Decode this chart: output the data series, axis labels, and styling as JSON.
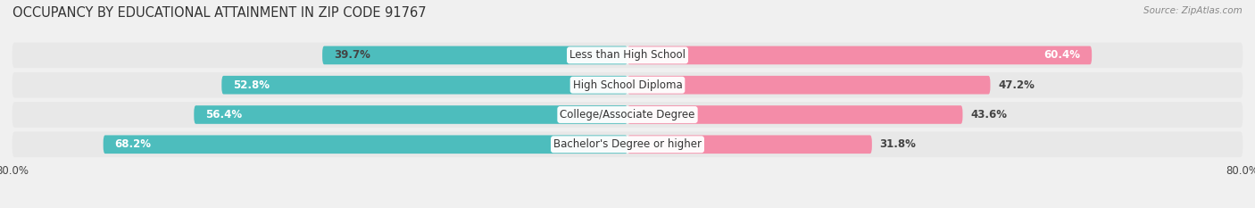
{
  "title": "OCCUPANCY BY EDUCATIONAL ATTAINMENT IN ZIP CODE 91767",
  "source": "Source: ZipAtlas.com",
  "categories": [
    "Less than High School",
    "High School Diploma",
    "College/Associate Degree",
    "Bachelor's Degree or higher"
  ],
  "owner_values": [
    39.7,
    52.8,
    56.4,
    68.2
  ],
  "renter_values": [
    60.4,
    47.2,
    43.6,
    31.8
  ],
  "owner_color": "#4dbdbd",
  "renter_color": "#f48ca8",
  "background_color": "#f0f0f0",
  "row_bg_color": "#e8e8e8",
  "title_fontsize": 10.5,
  "label_fontsize": 8.5,
  "cat_fontsize": 8.5,
  "bar_height": 0.62,
  "figsize": [
    14.06,
    2.33
  ],
  "dpi": 100,
  "xlim": 80.0
}
